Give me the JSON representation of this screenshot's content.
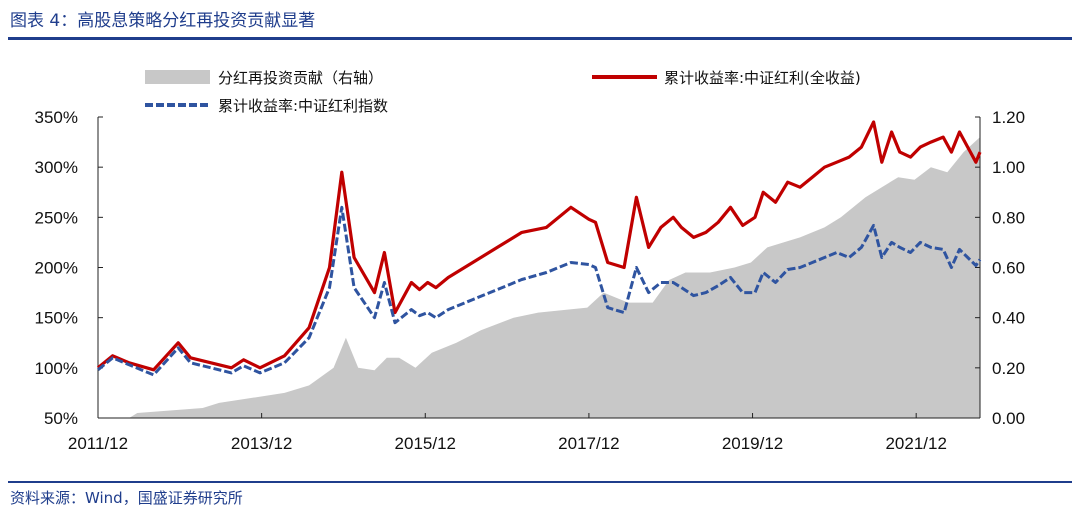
{
  "header": {
    "title": "图表 4：高股息策略分红再投资贡献显著"
  },
  "footer": {
    "source": "资料来源：Wind，国盛证券研究所"
  },
  "colors": {
    "accent": "#1f3d8c",
    "total_return": "#c00000",
    "price_index": "#2f54a0",
    "area": "#c8c8c8"
  },
  "chart_data": {
    "type": "line",
    "x_tick_labels": [
      "2011/12",
      "2013/12",
      "2015/12",
      "2017/12",
      "2019/12",
      "2021/12"
    ],
    "x_ticks": [
      2011.92,
      2013.92,
      2015.92,
      2017.92,
      2019.92,
      2021.92
    ],
    "xlim": [
      2011.92,
      2022.7
    ],
    "ylim_left": [
      0.5,
      3.5
    ],
    "ylim_right": [
      0.0,
      1.2
    ],
    "y_left_ticks": [
      "50%",
      "100%",
      "150%",
      "200%",
      "250%",
      "300%",
      "350%"
    ],
    "y_right_ticks": [
      "0.00",
      "0.20",
      "0.40",
      "0.60",
      "0.80",
      "1.00",
      "1.20"
    ],
    "grid": false,
    "legend_position": "top",
    "series": [
      {
        "name": "分红再投资贡献（右轴）",
        "kind": "area",
        "axis": "right",
        "color": "#c8c8c8",
        "x": [
          2011.92,
          2012.3,
          2012.4,
          2012.8,
          2013.2,
          2013.4,
          2013.8,
          2014.2,
          2014.5,
          2014.8,
          2014.95,
          2015.1,
          2015.3,
          2015.45,
          2015.6,
          2015.8,
          2016.0,
          2016.3,
          2016.6,
          2017.0,
          2017.3,
          2017.6,
          2017.9,
          2018.1,
          2018.4,
          2018.7,
          2018.9,
          2019.1,
          2019.4,
          2019.7,
          2019.9,
          2020.1,
          2020.3,
          2020.5,
          2020.8,
          2021.0,
          2021.3,
          2021.5,
          2021.7,
          2021.9,
          2022.1,
          2022.3,
          2022.5,
          2022.7
        ],
        "values": [
          0.0,
          0.0,
          0.02,
          0.03,
          0.04,
          0.06,
          0.08,
          0.1,
          0.13,
          0.2,
          0.32,
          0.2,
          0.19,
          0.24,
          0.24,
          0.2,
          0.26,
          0.3,
          0.35,
          0.4,
          0.42,
          0.43,
          0.44,
          0.5,
          0.46,
          0.46,
          0.55,
          0.58,
          0.58,
          0.6,
          0.62,
          0.68,
          0.7,
          0.72,
          0.76,
          0.8,
          0.88,
          0.92,
          0.96,
          0.95,
          1.0,
          0.98,
          1.06,
          1.12
        ]
      },
      {
        "name": "累计收益率:中证红利(全收益)",
        "kind": "line",
        "axis": "left",
        "color": "#c00000",
        "x": [
          2011.92,
          2012.1,
          2012.3,
          2012.6,
          2012.9,
          2013.05,
          2013.3,
          2013.55,
          2013.7,
          2013.9,
          2014.2,
          2014.5,
          2014.75,
          2014.9,
          2015.05,
          2015.3,
          2015.42,
          2015.55,
          2015.75,
          2015.85,
          2015.95,
          2016.05,
          2016.2,
          2016.5,
          2016.8,
          2017.1,
          2017.4,
          2017.7,
          2017.92,
          2018.0,
          2018.15,
          2018.35,
          2018.5,
          2018.65,
          2018.8,
          2018.95,
          2019.05,
          2019.2,
          2019.35,
          2019.5,
          2019.65,
          2019.8,
          2019.95,
          2020.05,
          2020.2,
          2020.35,
          2020.5,
          2020.65,
          2020.8,
          2020.95,
          2021.1,
          2021.25,
          2021.4,
          2021.5,
          2021.62,
          2021.72,
          2021.85,
          2021.97,
          2022.1,
          2022.25,
          2022.35,
          2022.45,
          2022.55,
          2022.65,
          2022.7
        ],
        "values": [
          1.0,
          1.12,
          1.05,
          0.98,
          1.25,
          1.1,
          1.05,
          1.0,
          1.08,
          1.0,
          1.12,
          1.4,
          2.0,
          2.95,
          2.1,
          1.75,
          2.15,
          1.55,
          1.85,
          1.78,
          1.85,
          1.8,
          1.9,
          2.05,
          2.2,
          2.35,
          2.4,
          2.6,
          2.48,
          2.45,
          2.05,
          2.0,
          2.7,
          2.2,
          2.4,
          2.5,
          2.4,
          2.3,
          2.35,
          2.45,
          2.6,
          2.42,
          2.5,
          2.75,
          2.65,
          2.85,
          2.8,
          2.9,
          3.0,
          3.05,
          3.1,
          3.2,
          3.45,
          3.05,
          3.35,
          3.15,
          3.1,
          3.2,
          3.25,
          3.3,
          3.15,
          3.35,
          3.2,
          3.05,
          3.15
        ]
      },
      {
        "name": "累计收益率:中证红利指数",
        "kind": "line",
        "axis": "left",
        "color": "#2f54a0",
        "x": [
          2011.92,
          2012.1,
          2012.3,
          2012.6,
          2012.9,
          2013.05,
          2013.3,
          2013.55,
          2013.7,
          2013.9,
          2014.2,
          2014.5,
          2014.75,
          2014.9,
          2015.05,
          2015.3,
          2015.42,
          2015.55,
          2015.75,
          2015.85,
          2015.95,
          2016.05,
          2016.2,
          2016.5,
          2016.8,
          2017.1,
          2017.4,
          2017.7,
          2017.92,
          2018.0,
          2018.15,
          2018.35,
          2018.5,
          2018.65,
          2018.8,
          2018.95,
          2019.05,
          2019.2,
          2019.35,
          2019.5,
          2019.65,
          2019.8,
          2019.95,
          2020.05,
          2020.2,
          2020.35,
          2020.5,
          2020.65,
          2020.8,
          2020.95,
          2021.1,
          2021.25,
          2021.4,
          2021.5,
          2021.62,
          2021.72,
          2021.85,
          2021.97,
          2022.1,
          2022.25,
          2022.35,
          2022.45,
          2022.55,
          2022.65,
          2022.7
        ],
        "values": [
          0.98,
          1.1,
          1.03,
          0.93,
          1.2,
          1.05,
          1.0,
          0.95,
          1.02,
          0.95,
          1.05,
          1.3,
          1.8,
          2.6,
          1.8,
          1.5,
          1.85,
          1.45,
          1.58,
          1.52,
          1.55,
          1.5,
          1.58,
          1.68,
          1.78,
          1.88,
          1.95,
          2.05,
          2.03,
          2.0,
          1.6,
          1.55,
          2.0,
          1.75,
          1.85,
          1.85,
          1.8,
          1.72,
          1.75,
          1.82,
          1.9,
          1.75,
          1.75,
          1.95,
          1.85,
          1.98,
          2.0,
          2.05,
          2.1,
          2.15,
          2.1,
          2.2,
          2.42,
          2.1,
          2.25,
          2.2,
          2.15,
          2.25,
          2.2,
          2.18,
          2.0,
          2.18,
          2.1,
          2.02,
          2.08
        ]
      }
    ]
  }
}
